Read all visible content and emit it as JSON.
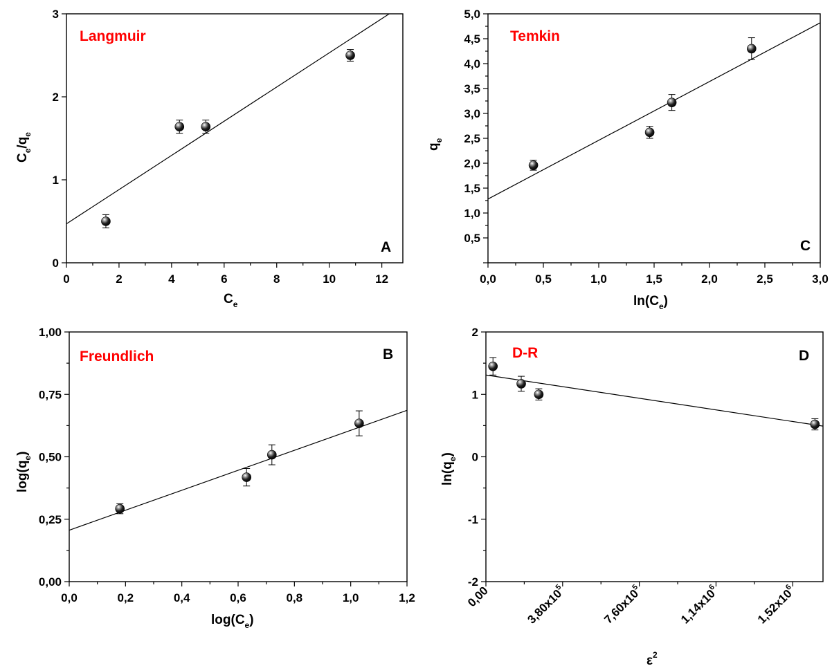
{
  "chart_data": [
    {
      "type": "scatter",
      "panel_name": "Langmuir",
      "panel_letter": "A",
      "xlabel": "C_e",
      "ylabel": "C_e/q_e",
      "xlim": [
        0,
        12.8
      ],
      "ylim": [
        0,
        3
      ],
      "x_ticks": [
        0,
        2,
        4,
        6,
        8,
        10,
        12
      ],
      "x_tick_labels": [
        "0",
        "2",
        "4",
        "6",
        "8",
        "10",
        "12"
      ],
      "y_ticks": [
        0,
        1,
        2,
        3
      ],
      "y_tick_labels": [
        "0",
        "1",
        "2",
        "3"
      ],
      "points": [
        {
          "x": 1.5,
          "y": 0.5,
          "err": 0.08
        },
        {
          "x": 4.3,
          "y": 1.64,
          "err": 0.08
        },
        {
          "x": 5.3,
          "y": 1.64,
          "err": 0.08
        },
        {
          "x": 10.8,
          "y": 2.5,
          "err": 0.07
        }
      ],
      "fit": {
        "slope": 0.206,
        "intercept": 0.47
      },
      "grid": false,
      "marker": "black sphere with error bars"
    },
    {
      "type": "scatter",
      "panel_name": "Temkin",
      "panel_letter": "C",
      "xlabel": "ln(C_e)",
      "ylabel": "q_e",
      "xlim": [
        0,
        3
      ],
      "ylim": [
        0,
        5
      ],
      "x_ticks": [
        0,
        0.5,
        1,
        1.5,
        2,
        2.5,
        3
      ],
      "x_tick_labels": [
        "0,0",
        "0,5",
        "1,0",
        "1,5",
        "2,0",
        "2,5",
        "3,0"
      ],
      "y_ticks": [
        0.5,
        1,
        1.5,
        2,
        2.5,
        3,
        3.5,
        4,
        4.5,
        5
      ],
      "y_tick_labels": [
        "0,5",
        "1,0",
        "1,5",
        "2,0",
        "2,5",
        "3,0",
        "3,5",
        "4,0",
        "4,5",
        "5,0"
      ],
      "points": [
        {
          "x": 0.41,
          "y": 1.96,
          "err": 0.1
        },
        {
          "x": 1.46,
          "y": 2.62,
          "err": 0.12
        },
        {
          "x": 1.66,
          "y": 3.22,
          "err": 0.16
        },
        {
          "x": 2.38,
          "y": 4.3,
          "err": 0.22
        }
      ],
      "fit": {
        "slope": 1.18,
        "intercept": 1.28
      },
      "grid": false,
      "marker": "black sphere with error bars"
    },
    {
      "type": "scatter",
      "panel_name": "Freundlich",
      "panel_letter": "B",
      "xlabel": "log(C_e)",
      "ylabel": "log(q_e)",
      "xlim": [
        0,
        1.2
      ],
      "ylim": [
        0,
        1
      ],
      "x_ticks": [
        0,
        0.2,
        0.4,
        0.6,
        0.8,
        1.0,
        1.2
      ],
      "x_tick_labels": [
        "0,0",
        "0,2",
        "0,4",
        "0,6",
        "0,8",
        "1,0",
        "1,2"
      ],
      "y_ticks": [
        0,
        0.25,
        0.5,
        0.75,
        1.0
      ],
      "y_tick_labels": [
        "0,00",
        "0,25",
        "0,50",
        "0,75",
        "1,00"
      ],
      "points": [
        {
          "x": 0.18,
          "y": 0.292,
          "err": 0.02
        },
        {
          "x": 0.63,
          "y": 0.418,
          "err": 0.035
        },
        {
          "x": 0.72,
          "y": 0.508,
          "err": 0.04
        },
        {
          "x": 1.03,
          "y": 0.634,
          "err": 0.05
        }
      ],
      "fit": {
        "slope": 0.4,
        "intercept": 0.206
      },
      "grid": false,
      "marker": "black sphere with error bars"
    },
    {
      "type": "scatter",
      "panel_name": "D-R",
      "panel_letter": "D",
      "xlabel": "ε²",
      "ylabel": "ln(q_e)",
      "xlim": [
        0,
        1670000.0
      ],
      "ylim": [
        -2,
        2
      ],
      "x_ticks": [
        0,
        380000,
        760000,
        1140000,
        1520000
      ],
      "x_tick_labels": [
        {
          "mantissa": "0,00",
          "exp": ""
        },
        {
          "mantissa": "3,80x10",
          "exp": "5"
        },
        {
          "mantissa": "7,60x10",
          "exp": "5"
        },
        {
          "mantissa": "1,14x10",
          "exp": "6"
        },
        {
          "mantissa": "1,52x10",
          "exp": "6"
        }
      ],
      "y_ticks": [
        -2,
        -1,
        0,
        1,
        2
      ],
      "y_tick_labels": [
        "-2",
        "-1",
        "0",
        "1",
        "2"
      ],
      "points": [
        {
          "x": 35000,
          "y": 1.45,
          "err": 0.14
        },
        {
          "x": 175000,
          "y": 1.17,
          "err": 0.12
        },
        {
          "x": 262000,
          "y": 1.0,
          "err": 0.09
        },
        {
          "x": 1630000,
          "y": 0.52,
          "err": 0.09
        }
      ],
      "fit": {
        "slope": -4.9e-07,
        "intercept": 1.31
      },
      "grid": false,
      "marker": "black sphere with error bars"
    }
  ],
  "labels": {
    "langmuir": {
      "name": "Langmuir",
      "letter": "A",
      "ylabel_main": "C",
      "ylabel_sub1": "e",
      "ylabel_mid": "/q",
      "ylabel_sub2": "e",
      "xlabel_main": "C",
      "xlabel_sub": "e"
    },
    "temkin": {
      "name": "Temkin",
      "letter": "C",
      "ylabel_main": "q",
      "ylabel_sub": "e",
      "xlabel_pre": "ln(C",
      "xlabel_sub": "e",
      "xlabel_post": ")"
    },
    "freundlich": {
      "name": "Freundlich",
      "letter": "B",
      "ylabel_pre": "log(q",
      "ylabel_sub": "e",
      "ylabel_post": ")",
      "xlabel_pre": "log(C",
      "xlabel_sub": "e",
      "xlabel_post": ")"
    },
    "dr": {
      "name": "D-R",
      "letter": "D",
      "ylabel_pre": "ln(q",
      "ylabel_sub": "e",
      "ylabel_post": ")",
      "xlabel_main": "ε",
      "xlabel_sup": "2"
    }
  }
}
